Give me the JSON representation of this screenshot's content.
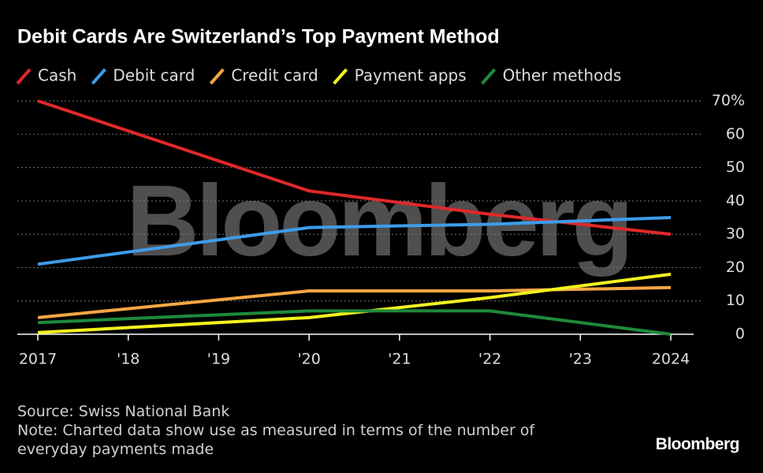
{
  "chart_data": {
    "type": "line",
    "title": "Debit Cards Are Switzerland’s Top Payment Method",
    "x": [
      2017,
      2020,
      2022,
      2024
    ],
    "xlim": [
      2017,
      2024
    ],
    "xticks": [
      2017,
      {
        "value": 2018,
        "label": "'18"
      },
      {
        "value": 2019,
        "label": "'19"
      },
      {
        "value": 2020,
        "label": "'20"
      },
      {
        "value": 2021,
        "label": "'21"
      },
      {
        "value": 2022,
        "label": "'22"
      },
      {
        "value": 2023,
        "label": "'23"
      },
      2024
    ],
    "ylim": [
      0,
      70
    ],
    "yticks": [
      0,
      10,
      20,
      30,
      40,
      50,
      60,
      {
        "value": 70,
        "label": "70%"
      }
    ],
    "grid": true,
    "series": [
      {
        "name": "Cash",
        "color": "#e0282a",
        "values": [
          70,
          43,
          36,
          30
        ]
      },
      {
        "name": "Debit card",
        "color": "#3e9ce8",
        "values": [
          21,
          32,
          33,
          35
        ]
      },
      {
        "name": "Credit card",
        "color": "#f5a742",
        "values": [
          5,
          13,
          13,
          14
        ]
      },
      {
        "name": "Payment apps",
        "color": "#f2f21e",
        "values": [
          0.5,
          5,
          11,
          18
        ]
      },
      {
        "name": "Other methods",
        "color": "#1f8a3b",
        "values": [
          3.5,
          7,
          7,
          0
        ]
      }
    ],
    "watermark": "Bloomberg",
    "source": "Source: Swiss National Bank",
    "note": "Note: Charted data show use as measured in terms of the number of everyday payments made",
    "logo": "Bloomberg"
  }
}
